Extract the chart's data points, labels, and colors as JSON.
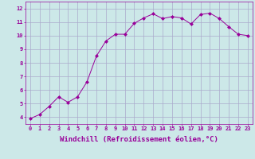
{
  "x": [
    0,
    1,
    2,
    3,
    4,
    5,
    6,
    7,
    8,
    9,
    10,
    11,
    12,
    13,
    14,
    15,
    16,
    17,
    18,
    19,
    20,
    21,
    22,
    23
  ],
  "y": [
    3.9,
    4.2,
    4.8,
    5.5,
    5.1,
    5.5,
    6.6,
    8.5,
    9.6,
    10.1,
    10.1,
    10.9,
    11.3,
    11.6,
    11.25,
    11.4,
    11.3,
    10.85,
    11.55,
    11.65,
    11.25,
    10.65,
    10.1,
    10.0
  ],
  "xlim": [
    -0.5,
    23.5
  ],
  "ylim": [
    3.5,
    12.5
  ],
  "yticks": [
    4,
    5,
    6,
    7,
    8,
    9,
    10,
    11,
    12
  ],
  "xticks": [
    0,
    1,
    2,
    3,
    4,
    5,
    6,
    7,
    8,
    9,
    10,
    11,
    12,
    13,
    14,
    15,
    16,
    17,
    18,
    19,
    20,
    21,
    22,
    23
  ],
  "xlabel": "Windchill (Refroidissement éolien,°C)",
  "line_color": "#990099",
  "marker": "D",
  "marker_size": 2.0,
  "bg_color": "#cce8e8",
  "grid_color": "#aaaacc",
  "tick_label_fontsize": 5.0,
  "xlabel_fontsize": 6.5
}
